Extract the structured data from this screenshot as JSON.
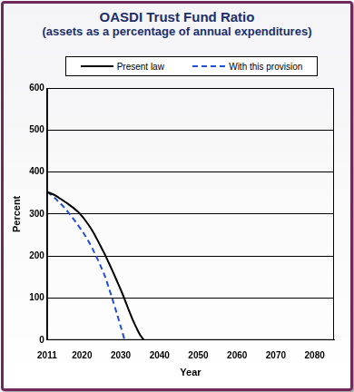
{
  "chart_data": {
    "type": "line",
    "title": "OASDI Trust Fund Ratio",
    "subtitle": "(assets as a percentage of annual expenditures)",
    "x_label": "Year",
    "y_label": "Percent",
    "x": [
      2011,
      2012,
      2013,
      2014,
      2015,
      2016,
      2017,
      2018,
      2019,
      2020,
      2021,
      2022,
      2023,
      2024,
      2025,
      2026,
      2027,
      2028,
      2029,
      2030,
      2031,
      2032,
      2033,
      2034,
      2035,
      2036
    ],
    "series": [
      {
        "name": "Present law",
        "color": "#000000",
        "line_style": "solid",
        "values": [
          353,
          349,
          345,
          339,
          333,
          327,
          320,
          313,
          305,
          295,
          283,
          270,
          255,
          238,
          220,
          202,
          182,
          162,
          141,
          120,
          97,
          73,
          50,
          30,
          12,
          0
        ]
      },
      {
        "name": "With this provision",
        "color": "#1f4fd6",
        "line_style": "dashed",
        "values": [
          353,
          346,
          338,
          329,
          320,
          309,
          298,
          286,
          273,
          260,
          246,
          230,
          212,
          193,
          172,
          150,
          122,
          93,
          63,
          32,
          0,
          null,
          null,
          null,
          null,
          null
        ]
      }
    ],
    "xlim": [
      2011,
      2085
    ],
    "xticks": [
      2011,
      2020,
      2030,
      2040,
      2050,
      2060,
      2070,
      2080
    ],
    "ylim": [
      0,
      600
    ],
    "yticks": [
      0,
      100,
      200,
      300,
      400,
      500,
      600
    ],
    "grid": true,
    "legend": "top"
  }
}
